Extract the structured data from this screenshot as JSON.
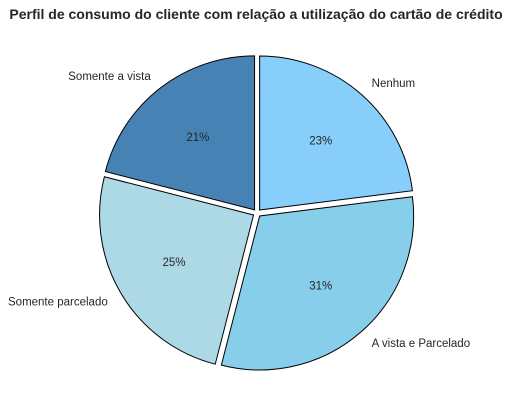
{
  "chart_data": {
    "type": "pie",
    "title": "Perfil de consumo do cliente com relação a utilização do cartão de crédito",
    "slices": [
      {
        "name": "Somente a vista",
        "value": 21,
        "label": "21%",
        "color": "#4682B4"
      },
      {
        "name": "Somente parcelado",
        "value": 25,
        "label": "25%",
        "color": "#ADD8E6"
      },
      {
        "name": "A vista e Parcelado",
        "value": 31,
        "label": "31%",
        "color": "#87CEEB"
      },
      {
        "name": "Nenhum",
        "value": 23,
        "label": "23%",
        "color": "#87CEFA"
      }
    ],
    "start_angle_deg": 90,
    "direction": "counterclockwise",
    "exploded": true,
    "edge_color": "#000000"
  }
}
